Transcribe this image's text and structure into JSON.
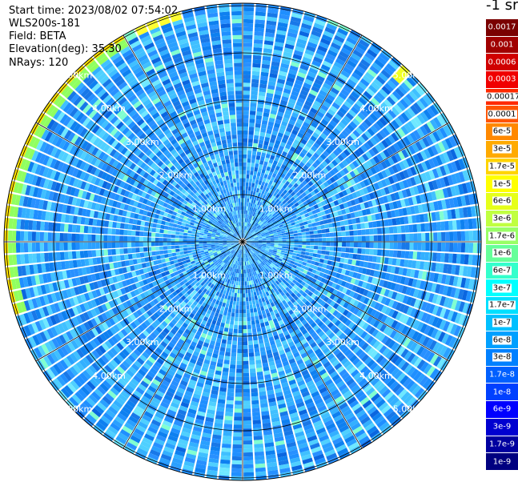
{
  "header": {
    "start_time": "Start time: 2023/08/02 07:54:02",
    "instrument": "WLS200s-181",
    "field": "Field: BETA",
    "elevation": "Elevation(deg): 35.30",
    "nrays": "NRays: 120"
  },
  "colorbar": {
    "unit": "-1 sr",
    "labels": [
      "0.0017",
      "0.001",
      "0.0006",
      "0.0003",
      "0.00017",
      "0.0001",
      "6e-5",
      "3e-5",
      "1.7e-5",
      "1e-5",
      "6e-6",
      "3e-6",
      "1.7e-6",
      "1e-6",
      "6e-7",
      "3e-7",
      "1.7e-7",
      "1e-7",
      "6e-8",
      "3e-8",
      "1.7e-8",
      "1e-8",
      "6e-9",
      "3e-9",
      "1.7e-9",
      "1e-9"
    ],
    "colors": [
      "#7a0000",
      "#a00000",
      "#d00000",
      "#f00000",
      "#ff2a00",
      "#ff5500",
      "#ff8800",
      "#ffaa00",
      "#ffd400",
      "#ffff00",
      "#e6ff1a",
      "#c0ff40",
      "#99ff66",
      "#66ff99",
      "#33ffcc",
      "#00ffff",
      "#00e0ff",
      "#00c0ff",
      "#00a0ff",
      "#0080ff",
      "#0060ff",
      "#0040ff",
      "#0000ff",
      "#0000d0",
      "#0000a0",
      "#000080"
    ],
    "text_colors": [
      "#ffffff",
      "#ffffff",
      "#ffffff",
      "#ffffff",
      "#000000",
      "#000000",
      "#000000",
      "#000000",
      "#000000",
      "#000000",
      "#000000",
      "#000000",
      "#000000",
      "#000000",
      "#000000",
      "#000000",
      "#000000",
      "#000000",
      "#000000",
      "#000000",
      "#ffffff",
      "#ffffff",
      "#ffffff",
      "#ffffff",
      "#ffffff",
      "#ffffff"
    ]
  },
  "ppi": {
    "range_rings": [
      {
        "label": "1.00km",
        "km": 1
      },
      {
        "label": "2.00km",
        "km": 2
      },
      {
        "label": "3.00km",
        "km": 3
      },
      {
        "label": "4.00km",
        "km": 4
      },
      {
        "label": "5.00km",
        "km": 5
      }
    ],
    "max_range_km": 5.05,
    "n_rays": 120,
    "spoke_interval_deg": 30,
    "ring_label_color": "#ffffff",
    "grid_color": "#000000"
  }
}
